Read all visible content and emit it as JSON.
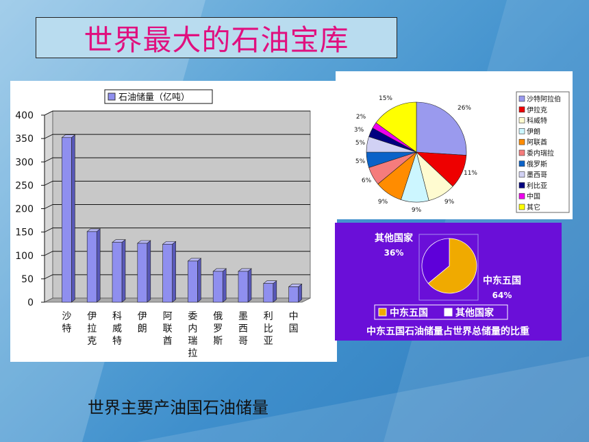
{
  "slide_title": "世界最大的石油宝库",
  "caption": "世界主要产油国石油储量",
  "colors": {
    "title": "#e0107f",
    "bar": "#8f8fef",
    "bar_panel_plot": "#c8c8c8",
    "share_bg": "#6a0fd8",
    "share_middle_east": "#f0aa00",
    "share_other": "#5e00d9"
  },
  "chart_data": [
    {
      "type": "bar",
      "legend": "石油储量（亿吨）",
      "categories": [
        "沙特",
        "伊拉克",
        "科威特",
        "伊朗",
        "阿联酋",
        "委内瑞拉",
        "俄罗斯",
        "墨西哥",
        "利比亚",
        "中国"
      ],
      "values": [
        352,
        151,
        128,
        126,
        124,
        88,
        66,
        66,
        40,
        33
      ],
      "yticks": [
        0,
        50,
        100,
        150,
        200,
        250,
        300,
        350,
        400
      ],
      "ylim": [
        0,
        400
      ],
      "grid": true,
      "legend_position": "top"
    },
    {
      "type": "pie",
      "labels": [
        "沙特阿拉伯",
        "伊拉克",
        "科威特",
        "伊朗",
        "阿联酋",
        "委内瑞拉",
        "俄罗斯",
        "墨西哥",
        "利比亚",
        "中国",
        "其它"
      ],
      "values": [
        26,
        11,
        9,
        9,
        9,
        6,
        5,
        5,
        3,
        2,
        15
      ],
      "value_labels": [
        "26%",
        "11%",
        "9%",
        "9%",
        "9%",
        "6%",
        "5%",
        "5%",
        "3%",
        "2%",
        "15%"
      ],
      "colors": [
        "#9a9aee",
        "#ee0000",
        "#fffbd0",
        "#ccf6ff",
        "#ff8c00",
        "#f57c7c",
        "#0b62c8",
        "#d1d1f4",
        "#000080",
        "#ee00ee",
        "#ffff00"
      ],
      "legend_position": "right"
    },
    {
      "type": "pie",
      "title": "中东五国石油储量占世界总储量的比重",
      "labels": [
        "中东五国",
        "其他国家"
      ],
      "values": [
        64,
        36
      ],
      "value_labels": [
        "64%",
        "36%"
      ],
      "legend_position": "bottom"
    }
  ]
}
